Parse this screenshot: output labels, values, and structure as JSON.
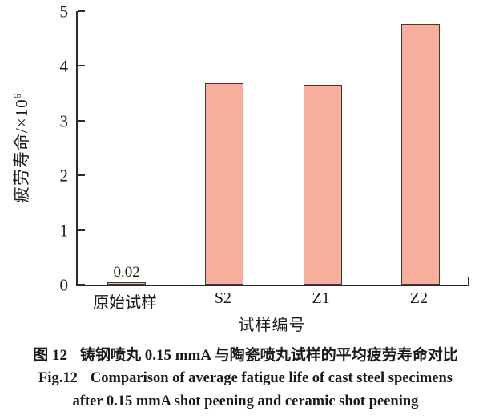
{
  "chart_data": {
    "type": "bar",
    "title": "",
    "categories": [
      "原始试样",
      "S2",
      "Z1",
      "Z2"
    ],
    "values": [
      0.02,
      3.65,
      3.63,
      4.73
    ],
    "bar_labels": [
      "0.02",
      "",
      "",
      ""
    ],
    "xlabel": "试样编号",
    "ylabel": "疲劳寿命/×10",
    "ylabel_superscript": "6",
    "ylim": [
      0,
      5
    ],
    "yticks": [
      0,
      1,
      2,
      3,
      4,
      5
    ],
    "grid": "off",
    "legend": "none",
    "bar_color": "#f7af9c",
    "bar_border_color": "#3b3b3b",
    "axis_color": "#2b2b2b"
  },
  "caption": {
    "zh_label": "图 12",
    "zh_text": "铸钢喷丸 0.15 mmA 与陶瓷喷丸试样的平均疲劳寿命对比",
    "en_label": "Fig.12",
    "en_line1": "Comparison of average fatigue life of cast steel specimens",
    "en_line2": "after 0.15 mmA shot peening and ceramic shot peening"
  }
}
